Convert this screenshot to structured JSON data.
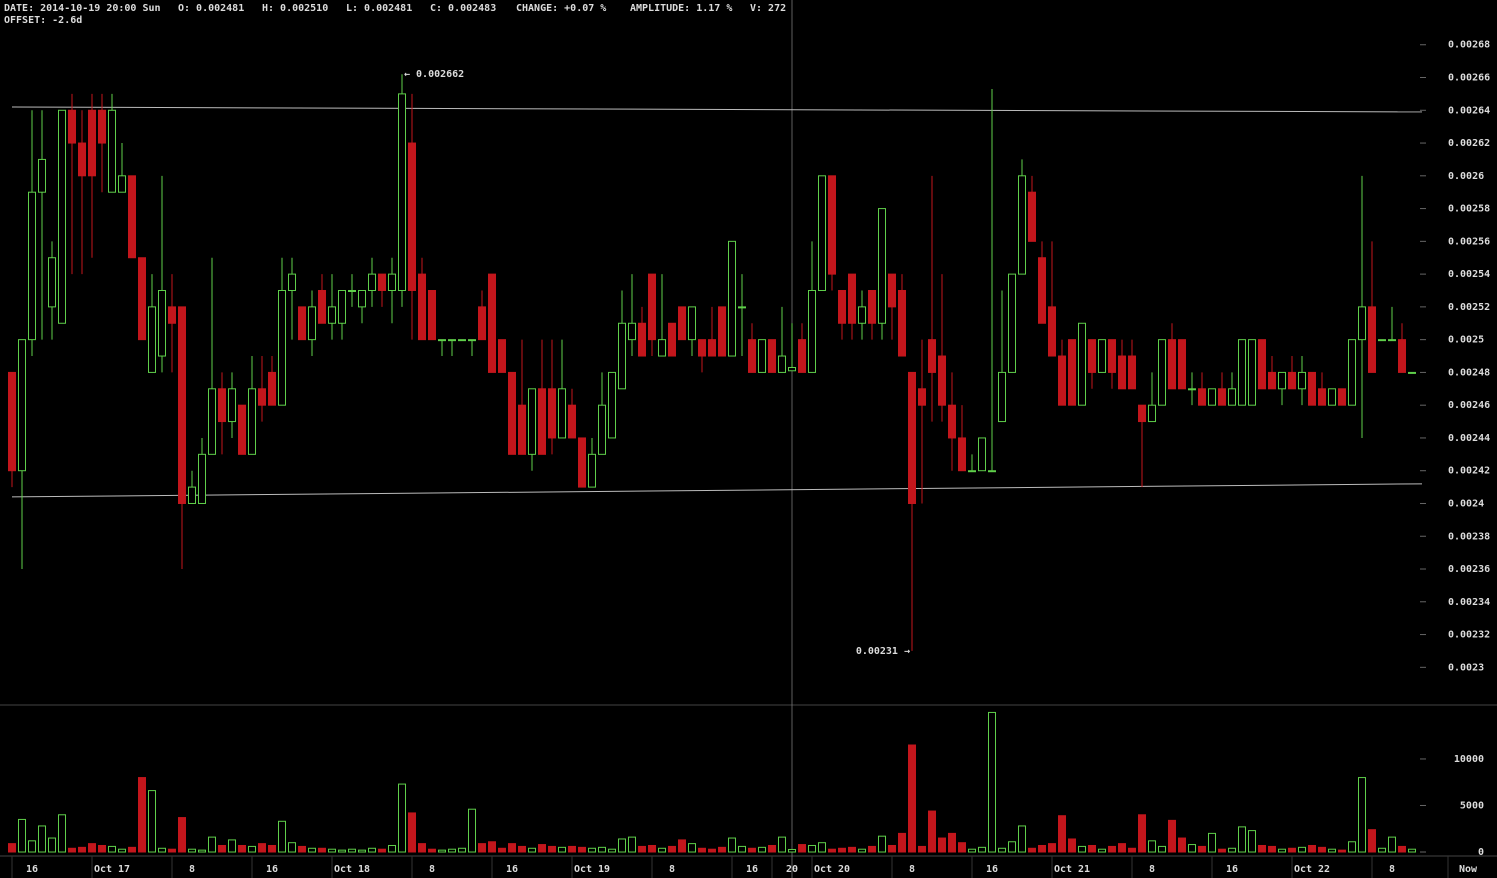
{
  "header": {
    "date": "DATE: 2014-10-19 20:00 Sun",
    "open": "O: 0.002481",
    "high": "H: 0.002510",
    "low": "L: 0.002481",
    "close": "C: 0.002483",
    "change": "CHANGE: +0.07 %",
    "amplitude": "AMPLITUDE: 1.17 %",
    "volume": "V: 272",
    "offset": "OFFSET: -2.6d"
  },
  "chart_data": {
    "type": "candlestick",
    "up_color": "#5fcf4a",
    "down_color": "#c3161c",
    "open": [
      0.00248,
      0.00242,
      0.0025,
      0.00259,
      0.00252,
      0.00251,
      0.00264,
      0.00262,
      0.00264,
      0.00264,
      0.00259,
      0.00259,
      0.0026,
      0.00255,
      0.00248,
      0.00249,
      0.00252,
      0.00252,
      0.0024,
      0.0024,
      0.00243,
      0.00247,
      0.00245,
      0.00246,
      0.00243,
      0.00247,
      0.00248,
      0.00246,
      0.00253,
      0.00252,
      0.0025,
      0.00253,
      0.00251,
      0.00251,
      0.00253,
      0.00252,
      0.00253,
      0.00254,
      0.00253,
      0.00253,
      0.00262,
      0.00254,
      0.00253,
      0.0025,
      0.0025,
      0.0025,
      0.0025,
      0.00252,
      0.00254,
      0.0025,
      0.00248,
      0.00246,
      0.00243,
      0.00247,
      0.00247,
      0.00244,
      0.00246,
      0.00244,
      0.00241,
      0.00243,
      0.00244,
      0.00247,
      0.0025,
      0.00251,
      0.00254,
      0.00249,
      0.00251,
      0.00252,
      0.0025,
      0.0025,
      0.0025,
      0.00252,
      0.00249,
      0.00252,
      0.0025,
      0.00248,
      0.0025,
      0.00248,
      0.002481,
      0.0025,
      0.00248,
      0.00253,
      0.0026,
      0.00253,
      0.00254,
      0.00251,
      0.00253,
      0.00251,
      0.00254,
      0.00253,
      0.00248,
      0.00247,
      0.0025,
      0.00249,
      0.00246,
      0.00244,
      0.00242,
      0.00242,
      0.00242,
      0.00245,
      0.00248,
      0.00254,
      0.00259,
      0.00255,
      0.00252,
      0.00249,
      0.0025,
      0.00246,
      0.0025,
      0.00248,
      0.0025,
      0.00249,
      0.00249,
      0.00246,
      0.00245,
      0.00246,
      0.0025,
      0.0025,
      0.00247,
      0.00247,
      0.00246,
      0.00247,
      0.00246,
      0.00246,
      0.00246,
      0.0025,
      0.00248,
      0.00247,
      0.00248,
      0.00247,
      0.00248,
      0.00247,
      0.00246,
      0.00247,
      0.00246,
      0.0025,
      0.00252,
      0.0025,
      0.0025,
      0.0025,
      0.00248
    ],
    "high": [
      0.00248,
      0.0025,
      0.00264,
      0.00264,
      0.00256,
      0.00264,
      0.00265,
      0.00264,
      0.00265,
      0.00265,
      0.00265,
      0.00262,
      0.0026,
      0.00255,
      0.00254,
      0.0026,
      0.00254,
      0.00252,
      0.00242,
      0.00244,
      0.00255,
      0.00248,
      0.00248,
      0.00246,
      0.00249,
      0.00249,
      0.00249,
      0.00255,
      0.00255,
      0.00252,
      0.00253,
      0.00254,
      0.00254,
      0.00253,
      0.00254,
      0.00253,
      0.00255,
      0.00254,
      0.00255,
      0.002662,
      0.00265,
      0.00255,
      0.00253,
      0.0025,
      0.0025,
      0.0025,
      0.0025,
      0.00253,
      0.00254,
      0.0025,
      0.00248,
      0.0025,
      0.00247,
      0.0025,
      0.0025,
      0.0025,
      0.00247,
      0.00244,
      0.00244,
      0.00248,
      0.00248,
      0.00253,
      0.00254,
      0.00252,
      0.00254,
      0.00254,
      0.00251,
      0.00252,
      0.00252,
      0.0025,
      0.00252,
      0.00252,
      0.00256,
      0.00254,
      0.00251,
      0.0025,
      0.0025,
      0.00252,
      0.00251,
      0.00251,
      0.00256,
      0.0026,
      0.0026,
      0.00253,
      0.00254,
      0.00253,
      0.00253,
      0.00258,
      0.00254,
      0.00254,
      0.00248,
      0.0025,
      0.0026,
      0.00254,
      0.00248,
      0.00246,
      0.00243,
      0.00244,
      0.002653,
      0.00253,
      0.00254,
      0.00261,
      0.0026,
      0.00256,
      0.00256,
      0.0025,
      0.0025,
      0.00251,
      0.0025,
      0.0025,
      0.0025,
      0.0025,
      0.0025,
      0.00246,
      0.00248,
      0.0025,
      0.00251,
      0.0025,
      0.00248,
      0.00248,
      0.00247,
      0.00248,
      0.00248,
      0.0025,
      0.0025,
      0.0025,
      0.00249,
      0.00248,
      0.00249,
      0.00249,
      0.00248,
      0.00248,
      0.00247,
      0.00247,
      0.0025,
      0.0026,
      0.00256,
      0.0025,
      0.00252,
      0.00251,
      0.00248
    ],
    "low": [
      0.00241,
      0.00236,
      0.00249,
      0.0025,
      0.0025,
      0.00251,
      0.00254,
      0.00254,
      0.00255,
      0.00259,
      0.00259,
      0.00259,
      0.00255,
      0.0025,
      0.00248,
      0.00248,
      0.00248,
      0.00236,
      0.0024,
      0.0024,
      0.00243,
      0.00243,
      0.00244,
      0.00243,
      0.00243,
      0.00245,
      0.00246,
      0.00246,
      0.0025,
      0.0025,
      0.00249,
      0.00251,
      0.0025,
      0.0025,
      0.00252,
      0.00251,
      0.00252,
      0.00252,
      0.00251,
      0.00252,
      0.0025,
      0.0025,
      0.0025,
      0.00249,
      0.00249,
      0.0025,
      0.00249,
      0.0025,
      0.00248,
      0.00248,
      0.00243,
      0.00243,
      0.00242,
      0.00243,
      0.00243,
      0.00244,
      0.00244,
      0.00241,
      0.00241,
      0.00243,
      0.00244,
      0.00247,
      0.00249,
      0.00249,
      0.00249,
      0.00249,
      0.00249,
      0.0025,
      0.00249,
      0.00248,
      0.00249,
      0.00249,
      0.00249,
      0.00249,
      0.00248,
      0.00248,
      0.00248,
      0.00248,
      0.002481,
      0.00248,
      0.00248,
      0.00253,
      0.00253,
      0.0025,
      0.0025,
      0.0025,
      0.0025,
      0.0025,
      0.0025,
      0.00249,
      0.00231,
      0.0024,
      0.00245,
      0.00245,
      0.00242,
      0.00242,
      0.00242,
      0.00242,
      0.00242,
      0.00245,
      0.00248,
      0.00254,
      0.00256,
      0.00251,
      0.00249,
      0.00246,
      0.00246,
      0.00246,
      0.00247,
      0.00248,
      0.00247,
      0.00247,
      0.00247,
      0.00241,
      0.00245,
      0.00246,
      0.00247,
      0.00247,
      0.00246,
      0.00246,
      0.00246,
      0.00246,
      0.00246,
      0.00246,
      0.00246,
      0.00247,
      0.00247,
      0.00246,
      0.00247,
      0.00246,
      0.00246,
      0.00246,
      0.00246,
      0.00246,
      0.00246,
      0.00244,
      0.00248,
      0.0025,
      0.0025,
      0.00248,
      0.00248
    ],
    "close": [
      0.00242,
      0.0025,
      0.00259,
      0.00261,
      0.00255,
      0.00264,
      0.00262,
      0.0026,
      0.0026,
      0.00262,
      0.00264,
      0.0026,
      0.00255,
      0.0025,
      0.00252,
      0.00253,
      0.00251,
      0.0024,
      0.00241,
      0.00243,
      0.00247,
      0.00245,
      0.00247,
      0.00243,
      0.00247,
      0.00246,
      0.00246,
      0.00253,
      0.00254,
      0.0025,
      0.00252,
      0.00251,
      0.00252,
      0.00253,
      0.00253,
      0.00253,
      0.00254,
      0.00253,
      0.00254,
      0.00265,
      0.00253,
      0.0025,
      0.0025,
      0.0025,
      0.0025,
      0.0025,
      0.0025,
      0.0025,
      0.00248,
      0.00248,
      0.00243,
      0.00243,
      0.00247,
      0.00243,
      0.00244,
      0.00247,
      0.00244,
      0.00241,
      0.00243,
      0.00246,
      0.00248,
      0.00251,
      0.00251,
      0.00249,
      0.0025,
      0.0025,
      0.00249,
      0.0025,
      0.00252,
      0.00249,
      0.00249,
      0.00249,
      0.00256,
      0.00252,
      0.00248,
      0.0025,
      0.00248,
      0.00249,
      0.002483,
      0.00248,
      0.00253,
      0.0026,
      0.00254,
      0.00251,
      0.00251,
      0.00252,
      0.00251,
      0.00258,
      0.00252,
      0.00249,
      0.0024,
      0.00246,
      0.00248,
      0.00246,
      0.00244,
      0.00242,
      0.00242,
      0.00244,
      0.00242,
      0.00248,
      0.00254,
      0.0026,
      0.00256,
      0.00251,
      0.00249,
      0.00246,
      0.00246,
      0.00251,
      0.00248,
      0.0025,
      0.00248,
      0.00247,
      0.00247,
      0.00245,
      0.00246,
      0.0025,
      0.00247,
      0.00247,
      0.00247,
      0.00246,
      0.00247,
      0.00246,
      0.00247,
      0.0025,
      0.0025,
      0.00247,
      0.00247,
      0.00248,
      0.00247,
      0.00248,
      0.00246,
      0.00246,
      0.00247,
      0.00246,
      0.0025,
      0.00252,
      0.00248,
      0.0025,
      0.0025,
      0.00248,
      0.00248
    ],
    "volume": [
      900,
      3500,
      1200,
      2800,
      1500,
      4000,
      400,
      500,
      900,
      700,
      600,
      300,
      500,
      8000,
      6600,
      400,
      300,
      3700,
      300,
      200,
      1600,
      700,
      1300,
      700,
      600,
      900,
      700,
      3300,
      1000,
      600,
      400,
      400,
      300,
      200,
      300,
      200,
      400,
      300,
      700,
      7300,
      4200,
      900,
      300,
      200,
      300,
      400,
      4600,
      900,
      1100,
      400,
      900,
      600,
      400,
      800,
      600,
      500,
      600,
      500,
      400,
      500,
      300,
      1400,
      1600,
      600,
      700,
      400,
      600,
      1300,
      900,
      400,
      300,
      500,
      1500,
      600,
      400,
      500,
      700,
      1600,
      272,
      800,
      700,
      1000,
      300,
      400,
      500,
      300,
      600,
      1700,
      700,
      2000,
      11500,
      600,
      4400,
      1500,
      2000,
      1000,
      300,
      500,
      15000,
      400,
      1100,
      2800,
      400,
      700,
      900,
      3900,
      1400,
      600,
      700,
      300,
      600,
      900,
      400,
      4000,
      1200,
      600,
      3400,
      1500,
      800,
      600,
      2000,
      300,
      400,
      2700,
      2300,
      700,
      600,
      300,
      400,
      500,
      700,
      500,
      300,
      200,
      1100,
      8000,
      2400,
      400,
      1600,
      600,
      300
    ],
    "xlim": [
      -1.2,
      148.5
    ],
    "xticks": [
      {
        "value": 2,
        "label": "16"
      },
      {
        "value": 10,
        "label": "Oct 17"
      },
      {
        "value": 18,
        "label": "8"
      },
      {
        "value": 26,
        "label": "16"
      },
      {
        "value": 34,
        "label": "Oct 18"
      },
      {
        "value": 42,
        "label": "8"
      },
      {
        "value": 50,
        "label": "16"
      },
      {
        "value": 58,
        "label": "Oct 19"
      },
      {
        "value": 66,
        "label": "8"
      },
      {
        "value": 74,
        "label": "16"
      },
      {
        "value": 78,
        "label": "20"
      },
      {
        "value": 82,
        "label": "Oct 20"
      },
      {
        "value": 90,
        "label": "8"
      },
      {
        "value": 98,
        "label": "16"
      },
      {
        "value": 106,
        "label": "Oct 21"
      },
      {
        "value": 114,
        "label": "8"
      },
      {
        "value": 122,
        "label": "16"
      },
      {
        "value": 130,
        "label": "Oct 22"
      },
      {
        "value": 138,
        "label": "8"
      },
      {
        "value": 145.6,
        "label": "Now"
      }
    ],
    "crosshair": 78,
    "ylim": [
      0.002277,
      0.002689
    ],
    "yticks": [
      0.0023,
      0.00232,
      0.00234,
      0.00236,
      0.00238,
      0.0024,
      0.00242,
      0.00244,
      0.00246,
      0.00248,
      0.0025,
      0.00252,
      0.00254,
      0.00256,
      0.00258,
      0.0026,
      0.00262,
      0.00264,
      0.00266,
      0.00268
    ],
    "volume_ylim": [
      0,
      15800
    ],
    "volume_yticks": [
      0,
      5000,
      10000
    ],
    "trendlines": [
      {
        "x": [
          0,
          141
        ],
        "y": [
          0.002642,
          0.002639
        ]
      },
      {
        "x": [
          0,
          141
        ],
        "y": [
          0.002404,
          0.002412
        ]
      }
    ],
    "annotations": [
      {
        "text": "← 0.002662",
        "index": 39,
        "value": 0.002662,
        "side": "right"
      },
      {
        "text": "0.00231 →",
        "index": 90,
        "value": 0.00231,
        "side": "left"
      }
    ]
  }
}
